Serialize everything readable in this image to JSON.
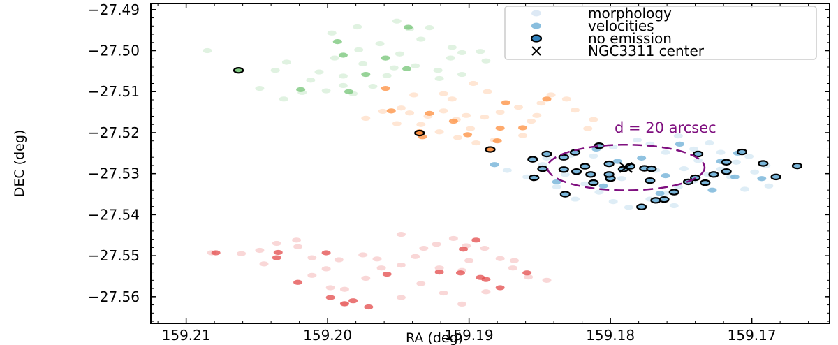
{
  "chart_data": {
    "type": "scatter",
    "xlabel": "RA (deg)",
    "ylabel": "DEC (deg)",
    "xlim": [
      159.2125,
      159.1645
    ],
    "ylim": [
      -27.5665,
      -27.4885
    ],
    "x_ticks": [
      159.21,
      159.2,
      159.19,
      159.18,
      159.17
    ],
    "x_tick_labels": [
      "159.21",
      "159.20",
      "159.19",
      "159.18",
      "159.17"
    ],
    "y_ticks": [
      -27.49,
      -27.5,
      -27.51,
      -27.52,
      -27.53,
      -27.54,
      -27.55,
      -27.56
    ],
    "y_tick_labels": [
      "−27.49",
      "−27.50",
      "−27.51",
      "−27.52",
      "−27.53",
      "−27.54",
      "−27.55",
      "−27.56"
    ],
    "grid": false,
    "legend_position": "top-right",
    "legend": [
      {
        "label": "morphology",
        "marker": "ellipse-light"
      },
      {
        "label": "velocities",
        "marker": "ellipse-medium"
      },
      {
        "label": "no emission",
        "marker": "ellipse-outlined"
      },
      {
        "label": "NGC3311 center",
        "marker": "x"
      }
    ],
    "annotation": {
      "text": "d = 20 arcsec",
      "color": "#7f0f7f"
    },
    "circle": {
      "center": [
        159.1789,
        -27.5285
      ],
      "radius_deg": 0.00556
    },
    "center": [
      159.1789,
      -27.5285
    ],
    "colors": {
      "green": "#74c476",
      "orange": "#fd8d3c",
      "blue": "#6baed6",
      "red": "#e34a4a",
      "purple": "#7f0f7f"
    },
    "groups": [
      {
        "name": "green",
        "color": "#74c476",
        "morphology": [
          [
            159.2085,
            -27.5
          ],
          [
            159.2037,
            -27.5048
          ],
          [
            159.2012,
            -27.5072
          ],
          [
            159.1995,
            -27.5018
          ],
          [
            159.1989,
            -27.5062
          ],
          [
            159.1975,
            -27.5032
          ],
          [
            159.1953,
            -27.5042
          ],
          [
            159.1978,
            -27.4998
          ],
          [
            159.1963,
            -27.4983
          ],
          [
            159.1942,
            -27.4947
          ],
          [
            159.1951,
            -27.4928
          ],
          [
            159.1928,
            -27.4944
          ],
          [
            159.1934,
            -27.4972
          ],
          [
            159.1912,
            -27.4992
          ],
          [
            159.1905,
            -27.5005
          ],
          [
            159.1892,
            -27.5002
          ],
          [
            159.1888,
            -27.5025
          ],
          [
            159.1905,
            -27.5058
          ],
          [
            159.1922,
            -27.5048
          ],
          [
            159.1938,
            -27.5037
          ],
          [
            159.1958,
            -27.5061
          ],
          [
            159.1968,
            -27.5087
          ],
          [
            159.1982,
            -27.5105
          ],
          [
            159.2001,
            -27.5098
          ],
          [
            159.2018,
            -27.5102
          ],
          [
            159.2031,
            -27.5118
          ],
          [
            159.2048,
            -27.5092
          ],
          [
            159.2029,
            -27.5028
          ],
          [
            159.1997,
            -27.4957
          ],
          [
            159.1979,
            -27.4942
          ],
          [
            159.1913,
            -27.5018
          ],
          [
            159.1921,
            -27.5068
          ],
          [
            159.1989,
            -27.5085
          ],
          [
            159.2006,
            -27.5052
          ],
          [
            159.1949,
            -27.5008
          ]
        ],
        "velocities": [
          [
            159.2019,
            -27.5095
          ],
          [
            159.1989,
            -27.5011
          ],
          [
            159.1973,
            -27.5058
          ],
          [
            159.1944,
            -27.5044
          ],
          [
            159.1993,
            -27.4978
          ],
          [
            159.1943,
            -27.4943
          ],
          [
            159.1959,
            -27.5018
          ],
          [
            159.1985,
            -27.51
          ]
        ],
        "no_emission": [
          [
            159.2063,
            -27.5048
          ]
        ]
      },
      {
        "name": "orange",
        "color": "#fd8d3c",
        "morphology": [
          [
            159.1973,
            -27.5165
          ],
          [
            159.1961,
            -27.5148
          ],
          [
            159.1951,
            -27.5178
          ],
          [
            159.1942,
            -27.5152
          ],
          [
            159.1929,
            -27.516
          ],
          [
            159.1918,
            -27.5147
          ],
          [
            159.1909,
            -27.5168
          ],
          [
            159.1899,
            -27.519
          ],
          [
            159.1889,
            -27.5162
          ],
          [
            159.1878,
            -27.515
          ],
          [
            159.1865,
            -27.5138
          ],
          [
            159.1856,
            -27.5172
          ],
          [
            159.1849,
            -27.5128
          ],
          [
            159.1842,
            -27.5108
          ],
          [
            159.1831,
            -27.5118
          ],
          [
            159.1825,
            -27.5145
          ],
          [
            159.1812,
            -27.5168
          ],
          [
            159.1816,
            -27.519
          ],
          [
            159.1862,
            -27.5207
          ],
          [
            159.1882,
            -27.5218
          ],
          [
            159.1895,
            -27.5225
          ],
          [
            159.1908,
            -27.5212
          ],
          [
            159.1921,
            -27.5198
          ],
          [
            159.1934,
            -27.518
          ],
          [
            159.1948,
            -27.514
          ],
          [
            159.1939,
            -27.5108
          ],
          [
            159.1912,
            -27.5118
          ],
          [
            159.1887,
            -27.51
          ],
          [
            159.1897,
            -27.508
          ],
          [
            159.1918,
            -27.5105
          ],
          [
            159.1852,
            -27.5158
          ],
          [
            159.1902,
            -27.5158
          ],
          [
            159.1885,
            -27.524
          ]
        ],
        "velocities": [
          [
            159.1955,
            -27.5147
          ],
          [
            159.1928,
            -27.5153
          ],
          [
            159.1911,
            -27.5172
          ],
          [
            159.1901,
            -27.5205
          ],
          [
            159.1878,
            -27.5189
          ],
          [
            159.1862,
            -27.5188
          ],
          [
            159.1935,
            -27.5198
          ],
          [
            159.1959,
            -27.5092
          ],
          [
            159.1933,
            -27.521
          ],
          [
            159.1874,
            -27.5127
          ],
          [
            159.1845,
            -27.5118
          ],
          [
            159.188,
            -27.522
          ]
        ],
        "no_emission": [
          [
            159.1935,
            -27.5201
          ],
          [
            159.1885,
            -27.5241
          ]
        ]
      },
      {
        "name": "blue",
        "color": "#6baed6",
        "morphology": [
          [
            159.1873,
            -27.5292
          ],
          [
            159.1859,
            -27.5308
          ],
          [
            159.1848,
            -27.5278
          ],
          [
            159.1832,
            -27.5302
          ],
          [
            159.1818,
            -27.5325
          ],
          [
            159.1808,
            -27.5345
          ],
          [
            159.1798,
            -27.5368
          ],
          [
            159.1787,
            -27.5382
          ],
          [
            159.1772,
            -27.5362
          ],
          [
            159.1761,
            -27.5347
          ],
          [
            159.1752,
            -27.5332
          ],
          [
            159.1741,
            -27.5318
          ],
          [
            159.1731,
            -27.5302
          ],
          [
            159.1722,
            -27.5289
          ],
          [
            159.1711,
            -27.5272
          ],
          [
            159.1698,
            -27.5296
          ],
          [
            159.1688,
            -27.533
          ],
          [
            159.1705,
            -27.5338
          ],
          [
            159.1722,
            -27.5248
          ],
          [
            159.1741,
            -27.524
          ],
          [
            159.1761,
            -27.5248
          ],
          [
            159.1772,
            -27.5228
          ],
          [
            159.1781,
            -27.5218
          ],
          [
            159.1798,
            -27.5235
          ],
          [
            159.1812,
            -27.5257
          ],
          [
            159.1828,
            -27.5255
          ],
          [
            159.1845,
            -27.5262
          ],
          [
            159.1755,
            -27.5378
          ],
          [
            159.1792,
            -27.5312
          ],
          [
            159.1768,
            -27.5292
          ],
          [
            159.1748,
            -27.5288
          ],
          [
            159.1738,
            -27.5268
          ],
          [
            159.1715,
            -27.5308
          ],
          [
            159.1702,
            -27.5258
          ],
          [
            159.1825,
            -27.5362
          ],
          [
            159.1838,
            -27.5332
          ],
          [
            159.1752,
            -27.5208
          ],
          [
            159.173,
            -27.5225
          ],
          [
            159.169,
            -27.528
          ]
        ],
        "velocities": [
          [
            159.1882,
            -27.5278
          ],
          [
            159.1838,
            -27.532
          ],
          [
            159.1805,
            -27.533
          ],
          [
            159.1778,
            -27.5262
          ],
          [
            159.1751,
            -27.5228
          ],
          [
            159.1728,
            -27.534
          ],
          [
            159.1722,
            -27.527
          ],
          [
            159.1693,
            -27.5312
          ],
          [
            159.1712,
            -27.5308
          ],
          [
            159.1761,
            -27.5305
          ],
          [
            159.1795,
            -27.527
          ],
          [
            159.1765,
            -27.5348
          ],
          [
            159.181,
            -27.524
          ],
          [
            159.171,
            -27.525
          ]
        ],
        "no_emission": [
          [
            159.1855,
            -27.5265
          ],
          [
            159.1845,
            -27.5252
          ],
          [
            159.1833,
            -27.526
          ],
          [
            159.1825,
            -27.5248
          ],
          [
            159.1808,
            -27.5232
          ],
          [
            159.1801,
            -27.5276
          ],
          [
            159.1791,
            -27.5289
          ],
          [
            159.1818,
            -27.5282
          ],
          [
            159.1824,
            -27.5295
          ],
          [
            159.1814,
            -27.5302
          ],
          [
            159.1833,
            -27.529
          ],
          [
            159.1854,
            -27.531
          ],
          [
            159.1832,
            -27.535
          ],
          [
            159.1812,
            -27.5322
          ],
          [
            159.18,
            -27.5312
          ],
          [
            159.1786,
            -27.5282
          ],
          [
            159.1776,
            -27.5287
          ],
          [
            159.1801,
            -27.5302
          ],
          [
            159.1848,
            -27.5288
          ],
          [
            159.1771,
            -27.5288
          ],
          [
            159.1762,
            -27.5363
          ],
          [
            159.1778,
            -27.5381
          ],
          [
            159.1768,
            -27.5365
          ],
          [
            159.1755,
            -27.5345
          ],
          [
            159.174,
            -27.531
          ],
          [
            159.1727,
            -27.5302
          ],
          [
            159.1733,
            -27.5322
          ],
          [
            159.1718,
            -27.5295
          ],
          [
            159.1738,
            -27.5252
          ],
          [
            159.1718,
            -27.5272
          ],
          [
            159.1707,
            -27.5247
          ],
          [
            159.1683,
            -27.5308
          ],
          [
            159.1668,
            -27.5281
          ],
          [
            159.1692,
            -27.5275
          ],
          [
            159.1745,
            -27.532
          ],
          [
            159.1772,
            -27.5317
          ]
        ]
      },
      {
        "name": "red",
        "color": "#e34a4a",
        "morphology": [
          [
            159.2082,
            -27.5493
          ],
          [
            159.2061,
            -27.5495
          ],
          [
            159.2048,
            -27.5487
          ],
          [
            159.2036,
            -27.547
          ],
          [
            159.2021,
            -27.5478
          ],
          [
            159.2011,
            -27.5505
          ],
          [
            159.2001,
            -27.5532
          ],
          [
            159.2011,
            -27.5548
          ],
          [
            159.1998,
            -27.5578
          ],
          [
            159.1988,
            -27.5582
          ],
          [
            159.1973,
            -27.5555
          ],
          [
            159.1962,
            -27.553
          ],
          [
            159.1948,
            -27.5523
          ],
          [
            159.1938,
            -27.5502
          ],
          [
            159.1923,
            -27.5472
          ],
          [
            159.1911,
            -27.5458
          ],
          [
            159.1902,
            -27.5476
          ],
          [
            159.1889,
            -27.5482
          ],
          [
            159.1878,
            -27.5507
          ],
          [
            159.1869,
            -27.553
          ],
          [
            159.1858,
            -27.5552
          ],
          [
            159.1845,
            -27.556
          ],
          [
            159.1905,
            -27.5536
          ],
          [
            159.1921,
            -27.553
          ],
          [
            159.1934,
            -27.5568
          ],
          [
            159.1918,
            -27.5591
          ],
          [
            159.1905,
            -27.5618
          ],
          [
            159.1975,
            -27.5498
          ],
          [
            159.1992,
            -27.551
          ],
          [
            159.2022,
            -27.5462
          ],
          [
            159.1948,
            -27.5448
          ],
          [
            159.1988,
            -27.5618
          ],
          [
            159.1948,
            -27.5602
          ],
          [
            159.1888,
            -27.5588
          ],
          [
            159.1868,
            -27.5512
          ],
          [
            159.2045,
            -27.552
          ],
          [
            159.1965,
            -27.5508
          ],
          [
            159.19,
            -27.5512
          ],
          [
            159.1932,
            -27.5482
          ]
        ],
        "velocities": [
          [
            159.2079,
            -27.5493
          ],
          [
            159.2036,
            -27.5505
          ],
          [
            159.2001,
            -27.5493
          ],
          [
            159.2021,
            -27.5565
          ],
          [
            159.1998,
            -27.5602
          ],
          [
            159.1988,
            -27.5617
          ],
          [
            159.1971,
            -27.5625
          ],
          [
            159.1958,
            -27.5545
          ],
          [
            159.1921,
            -27.554
          ],
          [
            159.1906,
            -27.5542
          ],
          [
            159.1892,
            -27.5553
          ],
          [
            159.1888,
            -27.5558
          ],
          [
            159.1878,
            -27.5578
          ],
          [
            159.1904,
            -27.5484
          ],
          [
            159.1895,
            -27.5462
          ],
          [
            159.1859,
            -27.5542
          ],
          [
            159.1982,
            -27.561
          ],
          [
            159.2035,
            -27.5492
          ]
        ],
        "no_emission": []
      }
    ]
  }
}
